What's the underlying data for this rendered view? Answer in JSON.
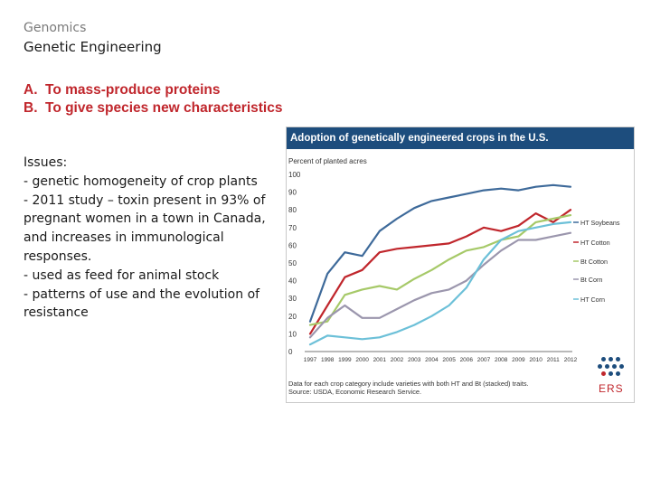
{
  "slide": {
    "kicker": "Genomics",
    "heading": "Genetic Engineering",
    "objectives": [
      {
        "letter": "A.",
        "text": "To mass-produce proteins"
      },
      {
        "letter": "B.",
        "text": "To give species new characteristics"
      }
    ],
    "issues": [
      "Issues:",
      " - genetic homogeneity of crop plants",
      " - 2011 study – toxin present in 93% of pregnant women in a town in Canada, and increases in immunological responses.",
      " - used as feed for animal stock",
      " - patterns of use and the evolution of resistance"
    ]
  },
  "figure": {
    "notes": [
      "Data for each crop category include varieties with both HT and Bt (stacked) traits.",
      "Source: USDA, Economic Research Service."
    ],
    "logo_text": "ERS"
  },
  "chart_data": {
    "type": "line",
    "title": "Adoption of genetically engineered crops in the U.S.",
    "ylabel": "Percent of planted acres",
    "xlabel": "",
    "ylim": [
      0,
      100
    ],
    "yticks": [
      0,
      10,
      20,
      30,
      40,
      50,
      60,
      70,
      80,
      90,
      100
    ],
    "grid": false,
    "legend_position": "right",
    "x": [
      "1997",
      "1998",
      "1999",
      "2000",
      "2001",
      "2002",
      "2003",
      "2004",
      "2005",
      "2006",
      "2007",
      "2008",
      "2009",
      "2010",
      "2011",
      "2012"
    ],
    "series": [
      {
        "name": "HT Soybeans",
        "color": "#3e6a9a",
        "values": [
          17,
          44,
          56,
          54,
          68,
          75,
          81,
          85,
          87,
          89,
          91,
          92,
          91,
          93,
          94,
          93
        ]
      },
      {
        "name": "HT Cotton",
        "color": "#c0262c",
        "values": [
          10,
          26,
          42,
          46,
          56,
          58,
          59,
          60,
          61,
          65,
          70,
          68,
          71,
          78,
          73,
          80
        ]
      },
      {
        "name": "Bt Cotton",
        "color": "#a6c968",
        "values": [
          15,
          17,
          32,
          35,
          37,
          35,
          41,
          46,
          52,
          57,
          59,
          63,
          65,
          73,
          75,
          77
        ]
      },
      {
        "name": "Bt Corn",
        "color": "#9b96ad",
        "values": [
          8,
          19,
          26,
          19,
          19,
          24,
          29,
          33,
          35,
          40,
          49,
          57,
          63,
          63,
          65,
          67
        ]
      },
      {
        "name": "HT Corn",
        "color": "#6cc0d8",
        "values": [
          4,
          9,
          8,
          7,
          8,
          11,
          15,
          20,
          26,
          36,
          52,
          63,
          68,
          70,
          72,
          73
        ]
      }
    ]
  }
}
